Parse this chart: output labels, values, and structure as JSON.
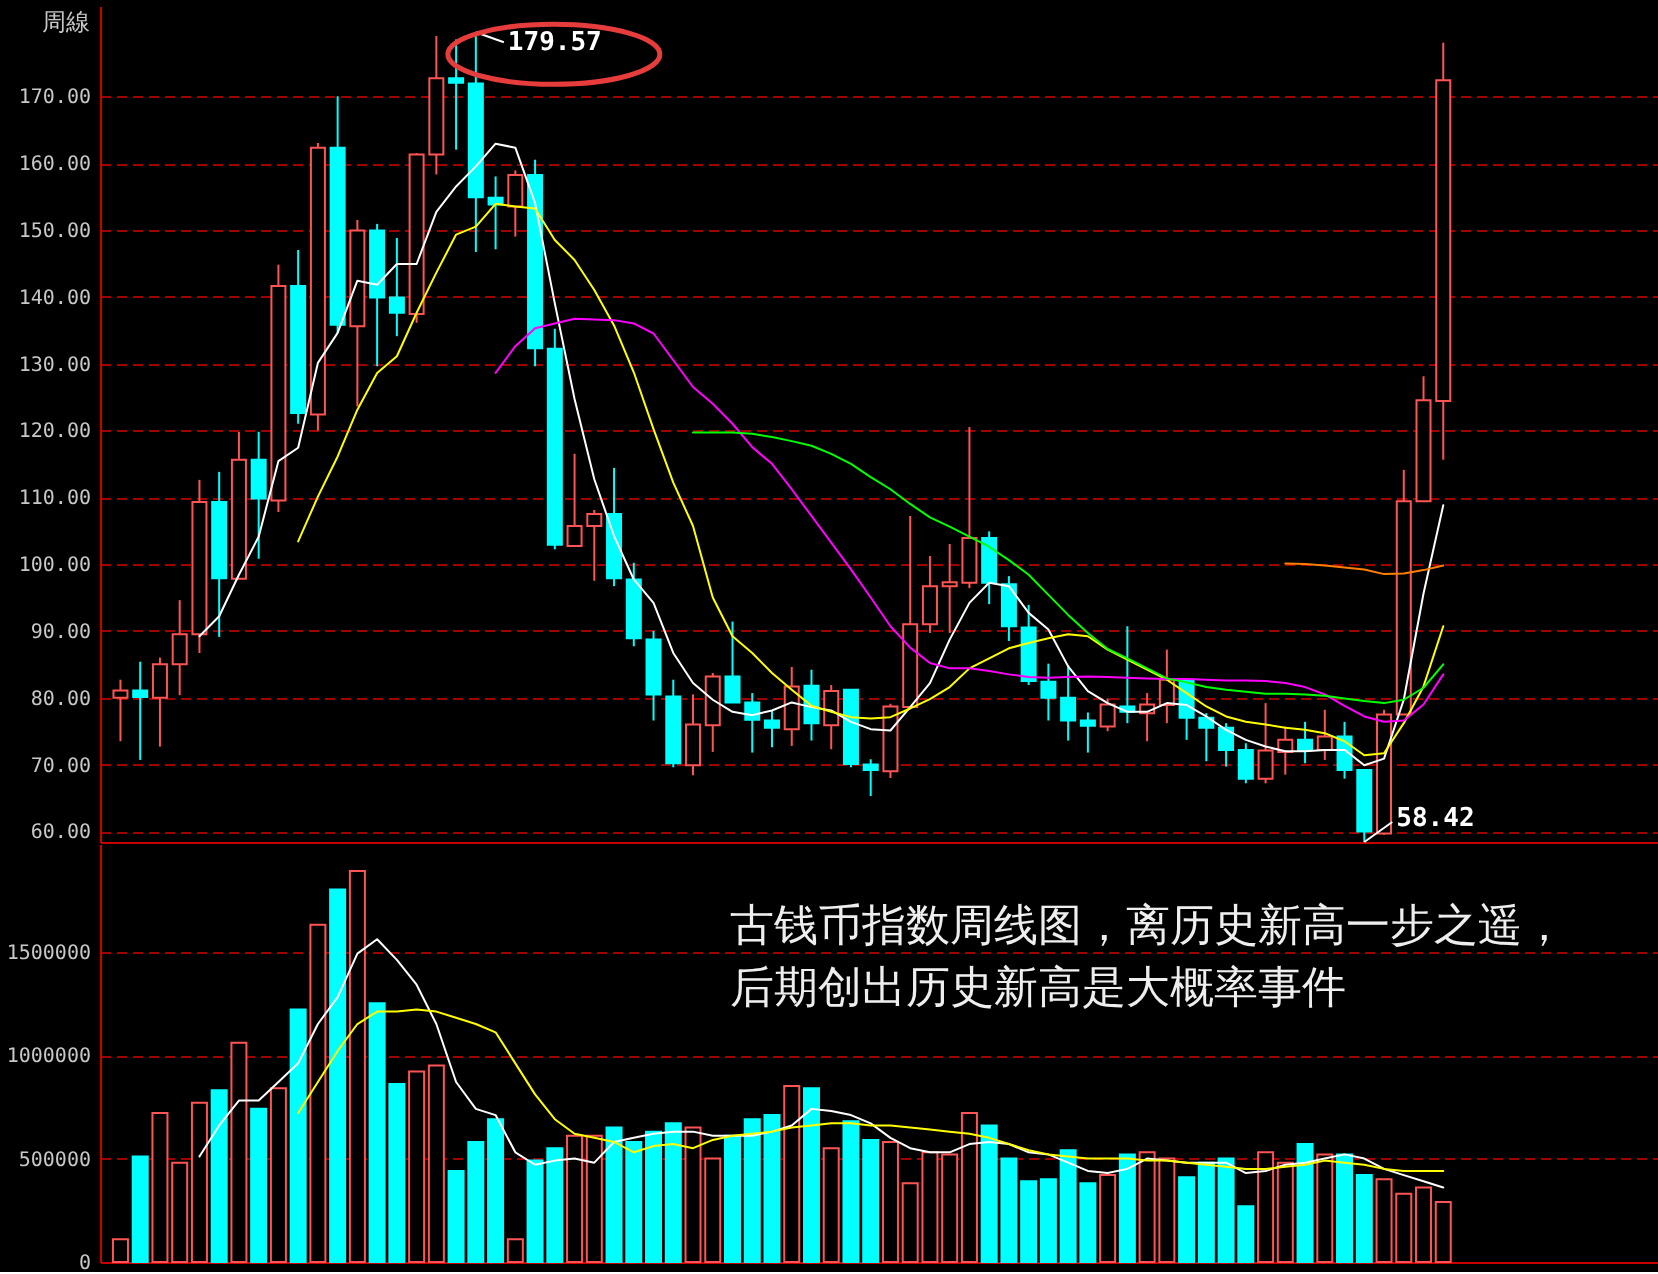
{
  "chart_data": [
    {
      "type": "candlestick",
      "title": "周線",
      "categories": [
        null,
        null,
        null,
        null,
        null,
        null,
        null,
        null,
        null,
        null,
        null,
        null,
        null,
        null,
        null,
        null,
        null,
        null,
        null,
        null,
        null,
        null,
        null,
        null,
        null,
        null,
        null,
        null,
        null,
        null,
        null,
        null,
        null,
        null,
        null,
        null,
        null,
        null,
        null,
        null,
        null,
        null,
        null,
        null,
        null,
        null,
        null,
        null,
        null,
        null,
        null,
        null,
        null,
        null,
        null,
        null,
        null,
        null,
        null,
        null,
        null,
        null,
        null,
        null,
        null,
        null,
        null,
        null
      ],
      "ohlc": [
        [
          80.0,
          82.7,
          73.5,
          81.1
        ],
        [
          81.1,
          85.4,
          70.7,
          80.1
        ],
        [
          80.0,
          86.0,
          72.7,
          85.0
        ],
        [
          85.0,
          94.6,
          80.4,
          89.5
        ],
        [
          89.5,
          112.6,
          86.7,
          109.3
        ],
        [
          109.3,
          113.8,
          89.1,
          97.9
        ],
        [
          97.8,
          119.8,
          97.8,
          115.6
        ],
        [
          115.6,
          119.8,
          100.8,
          109.8
        ],
        [
          109.5,
          144.8,
          107.8,
          141.6
        ],
        [
          141.6,
          147.0,
          121.0,
          122.6
        ],
        [
          122.4,
          163.0,
          120.0,
          162.3
        ],
        [
          162.3,
          170.0,
          134.6,
          135.8
        ],
        [
          135.6,
          151.5,
          123.6,
          149.9
        ],
        [
          149.9,
          150.9,
          129.6,
          139.9
        ],
        [
          139.9,
          148.8,
          134.1,
          137.6
        ],
        [
          137.4,
          161.5,
          136.1,
          161.3
        ],
        [
          161.3,
          179.0,
          158.3,
          172.7
        ],
        [
          172.7,
          178.5,
          162.0,
          172.0
        ],
        [
          171.9,
          179.57,
          146.7,
          154.9
        ],
        [
          154.8,
          158.0,
          147.1,
          153.8
        ],
        [
          153.5,
          158.9,
          149.0,
          158.2
        ],
        [
          158.2,
          160.5,
          129.6,
          132.3
        ],
        [
          132.2,
          135.2,
          102.2,
          102.9
        ],
        [
          102.7,
          116.5,
          102.7,
          105.7
        ],
        [
          105.7,
          108.1,
          97.5,
          107.5
        ],
        [
          107.5,
          114.4,
          96.7,
          97.9
        ],
        [
          97.7,
          100.2,
          87.7,
          88.9
        ],
        [
          88.7,
          90.0,
          76.6,
          80.5
        ],
        [
          80.2,
          82.7,
          69.6,
          70.2
        ],
        [
          69.9,
          80.5,
          68.4,
          76.0
        ],
        [
          75.9,
          83.7,
          71.9,
          83.2
        ],
        [
          83.2,
          91.4,
          79.3,
          79.3
        ],
        [
          79.3,
          80.7,
          71.8,
          76.7
        ],
        [
          76.6,
          78.1,
          72.6,
          75.5
        ],
        [
          75.3,
          84.6,
          72.8,
          81.7
        ],
        [
          81.8,
          84.2,
          73.6,
          76.2
        ],
        [
          75.9,
          81.9,
          72.3,
          81.0
        ],
        [
          81.2,
          81.2,
          69.6,
          70.1
        ],
        [
          70.0,
          70.8,
          65.3,
          69.2
        ],
        [
          69.0,
          79.1,
          68.0,
          78.7
        ],
        [
          78.6,
          107.2,
          78.4,
          91.0
        ],
        [
          91.0,
          101.2,
          89.7,
          96.7
        ],
        [
          96.7,
          103.0,
          89.7,
          97.3
        ],
        [
          97.2,
          120.5,
          96.4,
          103.9
        ],
        [
          103.9,
          104.9,
          94.0,
          97.2
        ],
        [
          97.0,
          98.2,
          88.5,
          90.7
        ],
        [
          90.5,
          93.9,
          81.9,
          82.5
        ],
        [
          82.4,
          85.1,
          76.6,
          80.0
        ],
        [
          80.0,
          84.9,
          73.6,
          76.6
        ],
        [
          76.6,
          77.8,
          71.8,
          75.8
        ],
        [
          75.7,
          79.9,
          75.0,
          79.0
        ],
        [
          78.7,
          90.7,
          76.2,
          77.9
        ],
        [
          77.7,
          80.7,
          73.5,
          79.0
        ],
        [
          78.9,
          87.2,
          76.2,
          82.7
        ],
        [
          82.7,
          82.7,
          73.7,
          77.0
        ],
        [
          77.0,
          77.7,
          70.5,
          75.5
        ],
        [
          75.5,
          76.2,
          69.7,
          72.2
        ],
        [
          72.2,
          73.2,
          67.2,
          67.9
        ],
        [
          67.9,
          79.2,
          67.2,
          72.1
        ],
        [
          71.9,
          75.7,
          68.5,
          73.7
        ],
        [
          73.7,
          76.4,
          70.2,
          72.2
        ],
        [
          72.2,
          78.2,
          70.7,
          74.2
        ],
        [
          74.2,
          76.4,
          67.9,
          69.2
        ],
        [
          69.2,
          69.2,
          58.42,
          60.0
        ],
        [
          59.7,
          78.2,
          59.5,
          77.5
        ],
        [
          77.5,
          114.1,
          77.5,
          109.4
        ],
        [
          109.4,
          128.1,
          109.4,
          124.5
        ],
        [
          124.4,
          178.0,
          115.6,
          172.4
        ]
      ],
      "colors": [
        "#ff5454",
        "#00ffff",
        "#ff5454",
        "#ff5454",
        "#ff5454",
        "#00ffff",
        "#ff5454",
        "#00ffff",
        "#ff5454",
        "#00ffff",
        "#ff5454",
        "#00ffff",
        "#ff5454",
        "#00ffff",
        "#00ffff",
        "#ff5454",
        "#ff5454",
        "#00ffff",
        "#00ffff",
        "#00ffff",
        "#ff5454",
        "#00ffff",
        "#00ffff",
        "#ff5454",
        "#ff5454",
        "#00ffff",
        "#00ffff",
        "#00ffff",
        "#00ffff",
        "#ff5454",
        "#ff5454",
        "#00ffff",
        "#00ffff",
        "#00ffff",
        "#ff5454",
        "#00ffff",
        "#ff5454",
        "#00ffff",
        "#00ffff",
        "#ff5454",
        "#ff5454",
        "#ff5454",
        "#ff5454",
        "#ff5454",
        "#00ffff",
        "#00ffff",
        "#00ffff",
        "#00ffff",
        "#00ffff",
        "#00ffff",
        "#ff5454",
        "#00ffff",
        "#ff5454",
        "#ff5454",
        "#00ffff",
        "#00ffff",
        "#00ffff",
        "#00ffff",
        "#ff5454",
        "#ff5454",
        "#00ffff",
        "#ff5454",
        "#00ffff",
        "#00ffff",
        "#ff5454",
        "#ff5454",
        "#ff5454",
        "#ff5454"
      ],
      "series": [
        {
          "type": "line",
          "color": "#ffffff",
          "values": [
            null,
            null,
            null,
            null,
            89.2,
            92.2,
            98.4,
            104.1,
            115.4,
            117.4,
            130.1,
            134.6,
            142.4,
            141.8,
            144.9,
            144.9,
            152.7,
            156.5,
            159.5,
            162.9,
            162.3,
            154.0,
            139.0,
            124.7,
            112.7,
            104.2,
            97.7,
            94.2,
            86.7,
            82.2,
            79.7,
            77.9,
            77.4,
            78.1,
            79.3,
            78.6,
            78.1,
            76.4,
            75.3,
            75.1,
            78.6,
            82.2,
            88.7,
            94.2,
            97.2,
            96.7,
            92.7,
            90.2,
            84.7,
            81.0,
            79.2,
            77.9,
            77.9,
            79.2,
            78.9,
            77.2,
            75.2,
            73.7,
            72.7,
            72.0,
            72.0,
            72.2,
            72.2,
            69.9,
            70.9,
            79.7,
            95.6,
            108.8
          ]
        },
        {
          "type": "line",
          "color": "#ffff00",
          "values": [
            null,
            null,
            null,
            null,
            null,
            null,
            null,
            null,
            null,
            103.4,
            110.1,
            116.1,
            123.1,
            128.6,
            131.1,
            137.6,
            143.6,
            149.3,
            150.5,
            153.9,
            153.5,
            153.2,
            148.5,
            145.5,
            141.0,
            135.7,
            128.7,
            120.2,
            112.2,
            105.7,
            95.0,
            89.2,
            86.7,
            83.7,
            81.2,
            78.8,
            77.9,
            77.1,
            76.9,
            77.1,
            78.4,
            79.8,
            81.6,
            84.4,
            85.9,
            87.4,
            88.2,
            88.9,
            89.5,
            89.2,
            87.2,
            85.7,
            84.2,
            82.7,
            80.7,
            78.7,
            77.2,
            76.4,
            76.0,
            75.5,
            75.2,
            74.7,
            73.5,
            71.4,
            71.7,
            76.2,
            81.7,
            90.7
          ]
        },
        {
          "type": "line",
          "color": "#ff00ff",
          "values": [
            null,
            null,
            null,
            null,
            null,
            null,
            null,
            null,
            null,
            null,
            null,
            null,
            null,
            null,
            null,
            null,
            null,
            null,
            null,
            128.6,
            132.6,
            135.3,
            136.0,
            136.7,
            136.6,
            136.5,
            136.0,
            134.5,
            130.5,
            126.5,
            124.0,
            121.0,
            117.5,
            115.0,
            111.2,
            107.2,
            103.2,
            99.2,
            95.0,
            90.7,
            87.5,
            85.2,
            84.4,
            84.4,
            84.0,
            83.5,
            83.1,
            83.0,
            83.1,
            83.2,
            83.1,
            83.0,
            82.9,
            82.8,
            82.8,
            82.7,
            82.6,
            82.6,
            82.5,
            82.2,
            81.6,
            80.5,
            78.8,
            77.2,
            76.4,
            76.6,
            79.0,
            83.5
          ]
        },
        {
          "type": "line",
          "color": "#00ff00",
          "values": [
            null,
            null,
            null,
            null,
            null,
            null,
            null,
            null,
            null,
            null,
            null,
            null,
            null,
            null,
            null,
            null,
            null,
            null,
            null,
            null,
            null,
            null,
            null,
            null,
            null,
            null,
            null,
            null,
            null,
            119.7,
            119.7,
            119.7,
            119.5,
            119.0,
            118.4,
            117.7,
            116.5,
            115.0,
            113.0,
            111.2,
            109.0,
            107.0,
            105.6,
            104.1,
            102.6,
            100.6,
            98.4,
            95.4,
            92.4,
            89.7,
            87.3,
            85.9,
            84.4,
            82.9,
            82.3,
            81.6,
            81.2,
            80.9,
            80.6,
            80.6,
            80.5,
            80.3,
            79.9,
            79.5,
            79.2,
            79.7,
            81.5,
            85.0
          ]
        },
        {
          "type": "line",
          "color": "#ff8000",
          "values": [
            null,
            null,
            null,
            null,
            null,
            null,
            null,
            null,
            null,
            null,
            null,
            null,
            null,
            null,
            null,
            null,
            null,
            null,
            null,
            null,
            null,
            null,
            null,
            null,
            null,
            null,
            null,
            null,
            null,
            null,
            null,
            null,
            null,
            null,
            null,
            null,
            null,
            null,
            null,
            null,
            null,
            null,
            null,
            null,
            null,
            null,
            null,
            null,
            null,
            null,
            null,
            null,
            null,
            null,
            null,
            null,
            null,
            null,
            null,
            100.1,
            100.0,
            99.8,
            99.5,
            99.2,
            98.5,
            98.6,
            99.1,
            99.8
          ]
        }
      ],
      "ylim": [
        58.42,
        183.5
      ],
      "yticks": [
        {
          "value": 60,
          "label": "60.00"
        },
        {
          "value": 70,
          "label": "70.00"
        },
        {
          "value": 80,
          "label": "80.00"
        },
        {
          "value": 90,
          "label": "90.00"
        },
        {
          "value": 100,
          "label": "100.00"
        },
        {
          "value": 110,
          "label": "110.00"
        },
        {
          "value": 120,
          "label": "120.00"
        },
        {
          "value": 130,
          "label": "130.00"
        },
        {
          "value": 140,
          "label": "140.00"
        },
        {
          "value": 150,
          "label": "150.00"
        },
        {
          "value": 160,
          "label": "160.00"
        },
        {
          "value": 170,
          "label": "170.00"
        }
      ],
      "grid": "y",
      "tick_labels": "y",
      "annotations": [
        "179.57",
        "58.42"
      ]
    },
    {
      "type": "bar",
      "categories": [
        null,
        null,
        null,
        null,
        null,
        null,
        null,
        null,
        null,
        null,
        null,
        null,
        null,
        null,
        null,
        null,
        null,
        null,
        null,
        null,
        null,
        null,
        null,
        null,
        null,
        null,
        null,
        null,
        null,
        null,
        null,
        null,
        null,
        null,
        null,
        null,
        null,
        null,
        null,
        null,
        null,
        null,
        null,
        null,
        null,
        null,
        null,
        null,
        null,
        null,
        null,
        null,
        null,
        null,
        null,
        null,
        null,
        null,
        null,
        null,
        null,
        null,
        null,
        null,
        null,
        null,
        null,
        null
      ],
      "values": [
        110000,
        510000,
        720000,
        480000,
        770000,
        830000,
        1060000,
        740000,
        840000,
        1220000,
        1630000,
        1800000,
        1890000,
        1250000,
        860000,
        920000,
        950000,
        440000,
        580000,
        690000,
        110000,
        490000,
        550000,
        610000,
        610000,
        650000,
        580000,
        630000,
        670000,
        650000,
        500000,
        610000,
        690000,
        710000,
        850000,
        840000,
        550000,
        680000,
        590000,
        580000,
        380000,
        530000,
        520000,
        720000,
        660000,
        500000,
        390000,
        400000,
        540000,
        380000,
        420000,
        520000,
        530000,
        500000,
        410000,
        480000,
        500000,
        270000,
        530000,
        480000,
        570000,
        520000,
        520000,
        420000,
        400000,
        330000,
        360000,
        290000
      ],
      "colors": [
        "#ff5454",
        "#00ffff",
        "#ff5454",
        "#ff5454",
        "#ff5454",
        "#00ffff",
        "#ff5454",
        "#00ffff",
        "#ff5454",
        "#00ffff",
        "#ff5454",
        "#00ffff",
        "#ff5454",
        "#00ffff",
        "#00ffff",
        "#ff5454",
        "#ff5454",
        "#00ffff",
        "#00ffff",
        "#00ffff",
        "#ff5454",
        "#00ffff",
        "#00ffff",
        "#ff5454",
        "#ff5454",
        "#00ffff",
        "#00ffff",
        "#00ffff",
        "#00ffff",
        "#ff5454",
        "#ff5454",
        "#00ffff",
        "#00ffff",
        "#00ffff",
        "#ff5454",
        "#00ffff",
        "#ff5454",
        "#00ffff",
        "#00ffff",
        "#ff5454",
        "#ff5454",
        "#ff5454",
        "#ff5454",
        "#ff5454",
        "#00ffff",
        "#00ffff",
        "#00ffff",
        "#00ffff",
        "#00ffff",
        "#00ffff",
        "#ff5454",
        "#00ffff",
        "#ff5454",
        "#ff5454",
        "#00ffff",
        "#00ffff",
        "#00ffff",
        "#00ffff",
        "#ff5454",
        "#ff5454",
        "#00ffff",
        "#ff5454",
        "#00ffff",
        "#00ffff",
        "#ff5454",
        "#ff5454",
        "#ff5454",
        "#ff5454"
      ],
      "series": [
        {
          "type": "line",
          "color": "#ffffff",
          "values": [
            null,
            null,
            null,
            null,
            510000,
            660000,
            780000,
            780000,
            870000,
            960000,
            1150000,
            1280000,
            1490000,
            1560000,
            1460000,
            1340000,
            1150000,
            870000,
            740000,
            710000,
            530000,
            470000,
            490000,
            500000,
            480000,
            580000,
            600000,
            620000,
            630000,
            630000,
            610000,
            610000,
            610000,
            630000,
            660000,
            740000,
            730000,
            710000,
            670000,
            600000,
            550000,
            530000,
            530000,
            570000,
            580000,
            570000,
            530000,
            520000,
            480000,
            440000,
            430000,
            450000,
            500000,
            490000,
            480000,
            480000,
            480000,
            430000,
            440000,
            470000,
            480000,
            500000,
            520000,
            500000,
            450000,
            420000,
            390000,
            360000
          ]
        },
        {
          "type": "line",
          "color": "#ffff00",
          "values": [
            null,
            null,
            null,
            null,
            null,
            null,
            null,
            null,
            null,
            720000,
            870000,
            1020000,
            1150000,
            1210000,
            1210000,
            1220000,
            1210000,
            1180000,
            1150000,
            1110000,
            960000,
            810000,
            690000,
            620000,
            600000,
            580000,
            530000,
            560000,
            570000,
            550000,
            590000,
            610000,
            620000,
            630000,
            650000,
            660000,
            670000,
            670000,
            660000,
            660000,
            650000,
            640000,
            630000,
            620000,
            600000,
            570000,
            540000,
            520000,
            510000,
            500000,
            500000,
            500000,
            490000,
            490000,
            480000,
            470000,
            460000,
            450000,
            450000,
            460000,
            470000,
            490000,
            480000,
            470000,
            450000,
            440000,
            440000,
            440000
          ]
        }
      ],
      "ylim": [
        0,
        2020000
      ],
      "yticks": [
        0,
        500000,
        1000000,
        1500000
      ],
      "grid": "y",
      "tick_labels": "y",
      "annotations": [
        "古钱币指数周线图，离历史新高一步之遥，",
        "后期创出历史新高是大概率事件"
      ]
    }
  ]
}
